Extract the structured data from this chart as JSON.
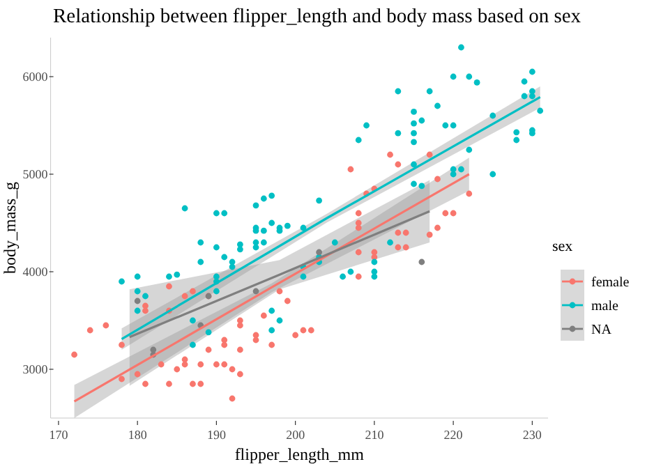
{
  "chart_data": {
    "type": "scatter",
    "title": "Relationship between flipper_length and body mass based on sex",
    "xlabel": "flipper_length_mm",
    "ylabel": "body_mass_g",
    "legend_title": "sex",
    "xlim": [
      169,
      232
    ],
    "ylim": [
      2500,
      6400
    ],
    "xticks": [
      170,
      180,
      190,
      200,
      210,
      220,
      230
    ],
    "yticks": [
      3000,
      4000,
      5000,
      6000
    ],
    "grid": false,
    "legend": "right",
    "marker": "circle",
    "series": [
      {
        "name": "female",
        "color": "#f8766d",
        "x": [
          172,
          174,
          176,
          178,
          178,
          180,
          181,
          181,
          181,
          183,
          184,
          184,
          184,
          185,
          186,
          186,
          186,
          187,
          187,
          188,
          188,
          189,
          189,
          190,
          191,
          191,
          191,
          192,
          192,
          193,
          193,
          193,
          193,
          195,
          195,
          196,
          197,
          198,
          199,
          200,
          201,
          202,
          207,
          208,
          208,
          208,
          208,
          208,
          209,
          210,
          210,
          210,
          212,
          213,
          213,
          213,
          214,
          214,
          217,
          217,
          218,
          218,
          219,
          220,
          222
        ],
        "values": [
          3150,
          3400,
          3450,
          3250,
          2900,
          2950,
          2850,
          3650,
          3600,
          3050,
          2850,
          3850,
          3600,
          3000,
          3050,
          3100,
          3750,
          2850,
          3800,
          2850,
          3050,
          3200,
          3750,
          3050,
          3050,
          3300,
          3250,
          3000,
          2700,
          2950,
          3200,
          3500,
          3450,
          3350,
          3300,
          3550,
          3250,
          3800,
          3700,
          3350,
          3400,
          3400,
          5050,
          4600,
          4500,
          4200,
          3950,
          4450,
          4800,
          4850,
          4200,
          4150,
          5200,
          5100,
          4250,
          4400,
          4250,
          4400,
          5200,
          4380,
          4950,
          4450,
          4600,
          4600,
          4800
        ]
      },
      {
        "name": "male",
        "color": "#00bfc4",
        "x": [
          178,
          180,
          180,
          180,
          181,
          184,
          185,
          186,
          187,
          187,
          188,
          188,
          189,
          190,
          190,
          190,
          190,
          190,
          191,
          191,
          192,
          192,
          193,
          193,
          195,
          195,
          195,
          195,
          195,
          196,
          196,
          196,
          197,
          197,
          197,
          197,
          198,
          198,
          198,
          199,
          201,
          201,
          201,
          203,
          203,
          203,
          205,
          206,
          207,
          208,
          209,
          210,
          210,
          210,
          212,
          213,
          213,
          215,
          215,
          215,
          215,
          215,
          215,
          216,
          216,
          217,
          218,
          219,
          220,
          220,
          220,
          220,
          221,
          221,
          222,
          222,
          223,
          225,
          225,
          228,
          228,
          229,
          229,
          230,
          230,
          230,
          230,
          230,
          231
        ],
        "values": [
          3900,
          3950,
          3800,
          3600,
          3750,
          3950,
          3970,
          4650,
          3500,
          3250,
          4300,
          4100,
          3380,
          4600,
          4250,
          3950,
          3900,
          3800,
          4600,
          4150,
          4100,
          4050,
          4280,
          4230,
          4680,
          4450,
          4300,
          4250,
          4420,
          4750,
          4420,
          4300,
          4780,
          4500,
          3600,
          3400,
          4450,
          4420,
          3500,
          4470,
          4450,
          4050,
          3950,
          4730,
          4150,
          4100,
          4300,
          3950,
          4000,
          5350,
          5500,
          4100,
          4000,
          3950,
          4300,
          5850,
          5420,
          5640,
          5520,
          5420,
          5330,
          5100,
          4900,
          5550,
          4880,
          5850,
          5700,
          5500,
          6000,
          5500,
          5050,
          5000,
          6300,
          5050,
          6000,
          5250,
          5940,
          5600,
          5000,
          5430,
          5350,
          5950,
          5800,
          6050,
          5800,
          5850,
          5450,
          5420,
          5650
        ]
      },
      {
        "name": "NA",
        "color": "#7f7f7f",
        "x": [
          180,
          182,
          182,
          188,
          189,
          195,
          203,
          216
        ],
        "values": [
          3700,
          3200,
          3150,
          3450,
          3750,
          3800,
          4200,
          4100
        ]
      },
      {
        "color": "#f8766d",
        "type": "line",
        "marker": "none",
        "x": [
          172,
          197,
          222
        ],
        "values": [
          2670,
          3840,
          5000
        ],
        "lower": [
          2500,
          3790,
          4830
        ],
        "upper": [
          2840,
          3880,
          5170
        ]
      },
      {
        "color": "#00bfc4",
        "type": "line",
        "marker": "none",
        "x": [
          178,
          204,
          231
        ],
        "values": [
          3310,
          4550,
          5790
        ],
        "lower": [
          3200,
          4505,
          5680
        ],
        "upper": [
          3420,
          4595,
          5900
        ]
      },
      {
        "color": "#7f7f7f",
        "type": "line",
        "marker": "none",
        "x": [
          179,
          198,
          217
        ],
        "values": [
          3330,
          3970,
          4620
        ],
        "lower": [
          2830,
          3820,
          4300
        ],
        "upper": [
          3820,
          4120,
          4940
        ]
      }
    ]
  }
}
